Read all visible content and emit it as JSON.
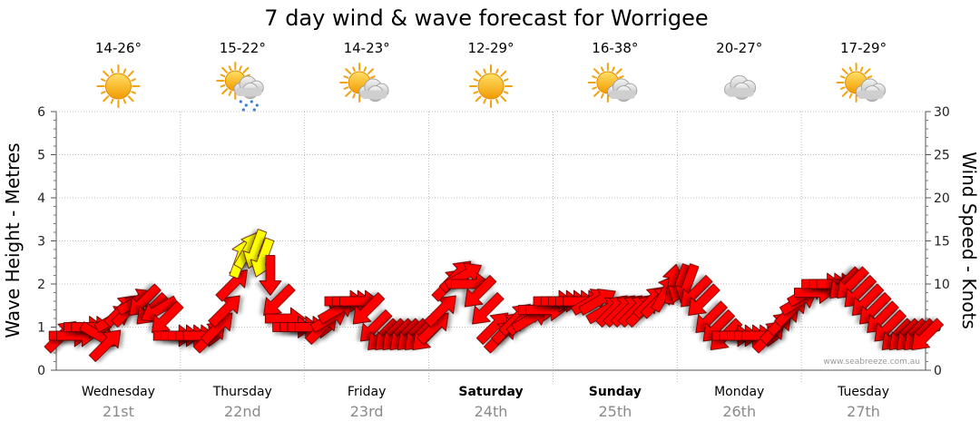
{
  "chart_data": {
    "type": "line",
    "title": "7 day wind & wave forecast for Worrigee",
    "y_left_label": "Wave Height - Metres",
    "y_right_label": "Wind Speed - Knots",
    "y_left_ticks": [
      "0",
      "1",
      "2",
      "3",
      "4",
      "5",
      "6"
    ],
    "y_right_ticks": [
      "0",
      "5",
      "10",
      "15",
      "20",
      "25",
      "30"
    ],
    "y_left_range": [
      0,
      6
    ],
    "y_right_range": [
      0,
      30
    ],
    "grid": true,
    "credit": "www.seabreeze.com.au",
    "days": [
      {
        "name": "Wednesday",
        "date": "21st",
        "temp": "14-26°",
        "weather_icon": "sun-icon",
        "bold": false
      },
      {
        "name": "Thursday",
        "date": "22nd",
        "temp": "15-22°",
        "weather_icon": "sun-cloud-rain-icon",
        "bold": false
      },
      {
        "name": "Friday",
        "date": "23rd",
        "temp": "14-23°",
        "weather_icon": "sun-cloud-icon",
        "bold": false
      },
      {
        "name": "Saturday",
        "date": "24th",
        "temp": "12-29°",
        "weather_icon": "sun-icon",
        "bold": true
      },
      {
        "name": "Sunday",
        "date": "25th",
        "temp": "16-38°",
        "weather_icon": "sun-cloud-icon",
        "bold": true
      },
      {
        "name": "Monday",
        "date": "26th",
        "temp": "20-27°",
        "weather_icon": "cloud-icon",
        "bold": false
      },
      {
        "name": "Tuesday",
        "date": "27th",
        "temp": "17-29°",
        "weather_icon": "sun-cloud-icon",
        "bold": false
      }
    ],
    "series": [
      {
        "kind": "wind_arrows",
        "t_days": [
          0.0,
          0.06,
          0.12,
          0.18,
          0.24,
          0.3,
          0.36,
          0.42,
          0.48,
          0.54,
          0.6,
          0.66,
          0.72,
          0.78,
          0.84,
          0.9,
          0.96,
          1.02,
          1.08,
          1.14,
          1.2,
          1.26,
          1.32,
          1.38,
          1.44,
          1.5,
          1.56,
          1.62,
          1.68,
          1.74,
          1.8,
          1.86,
          1.92,
          1.98,
          2.04,
          2.1,
          2.16,
          2.22,
          2.28,
          2.34,
          2.4,
          2.46,
          2.52,
          2.58,
          2.64,
          2.7,
          2.76,
          2.82,
          2.88,
          2.94,
          3.0,
          3.06,
          3.12,
          3.18,
          3.24,
          3.3,
          3.36,
          3.42,
          3.48,
          3.54,
          3.6,
          3.66,
          3.72,
          3.78,
          3.84,
          3.9,
          3.96,
          4.02,
          4.08,
          4.14,
          4.2,
          4.26,
          4.32,
          4.38,
          4.44,
          4.5,
          4.56,
          4.62,
          4.68,
          4.74,
          4.8,
          4.86,
          4.92,
          4.98,
          5.04,
          5.1,
          5.16,
          5.22,
          5.28,
          5.34,
          5.4,
          5.46,
          5.52,
          5.58,
          5.64,
          5.7,
          5.76,
          5.82,
          5.88,
          5.94,
          6.0,
          6.06,
          6.12,
          6.18,
          6.24,
          6.3,
          6.36,
          6.42,
          6.48,
          6.54,
          6.6,
          6.66,
          6.72,
          6.78,
          6.84,
          6.9,
          6.96
        ],
        "knots": [
          4,
          4,
          4,
          5,
          5,
          4,
          3,
          6,
          7,
          7,
          8,
          8,
          7,
          7,
          6,
          4,
          4,
          4,
          4,
          4,
          4,
          5,
          7,
          10,
          13,
          14,
          14,
          13,
          11,
          8,
          6,
          5,
          5,
          5,
          5,
          5,
          6,
          7,
          8,
          8,
          8,
          7,
          5,
          4,
          4,
          4,
          4,
          4,
          4,
          4,
          5,
          7,
          10,
          11,
          11,
          10,
          9,
          7,
          5,
          4,
          5,
          6,
          6,
          6,
          7,
          7,
          8,
          8,
          8,
          8,
          8,
          8,
          8,
          7,
          7,
          7,
          7,
          7,
          7,
          8,
          8,
          9,
          10,
          10,
          10,
          9,
          8,
          6,
          5,
          4,
          4,
          4,
          4,
          4,
          4,
          4,
          5,
          6,
          7,
          8,
          9,
          9,
          10,
          10,
          10,
          10,
          10,
          9,
          8,
          7,
          6,
          5,
          4,
          4,
          4,
          4,
          4
        ],
        "direction_deg": [
          45,
          90,
          90,
          90,
          90,
          120,
          45,
          60,
          45,
          45,
          60,
          225,
          225,
          240,
          225,
          90,
          90,
          90,
          90,
          90,
          45,
          45,
          45,
          45,
          20,
          30,
          200,
          200,
          180,
          225,
          90,
          90,
          90,
          90,
          90,
          45,
          60,
          60,
          90,
          90,
          90,
          225,
          225,
          225,
          225,
          225,
          225,
          225,
          225,
          225,
          45,
          45,
          45,
          45,
          60,
          90,
          225,
          225,
          45,
          45,
          45,
          45,
          45,
          60,
          90,
          90,
          90,
          90,
          90,
          90,
          90,
          60,
          60,
          60,
          45,
          45,
          45,
          45,
          45,
          45,
          45,
          30,
          10,
          200,
          200,
          225,
          225,
          225,
          225,
          225,
          90,
          90,
          90,
          90,
          90,
          45,
          45,
          45,
          45,
          60,
          60,
          90,
          90,
          90,
          90,
          225,
          225,
          225,
          225,
          225,
          225,
          225,
          225,
          225,
          225,
          225,
          225
        ],
        "color_rule": {
          "default": "#ff0000",
          "strong": "#ffff00",
          "strong_threshold_knots": 13
        }
      }
    ]
  }
}
